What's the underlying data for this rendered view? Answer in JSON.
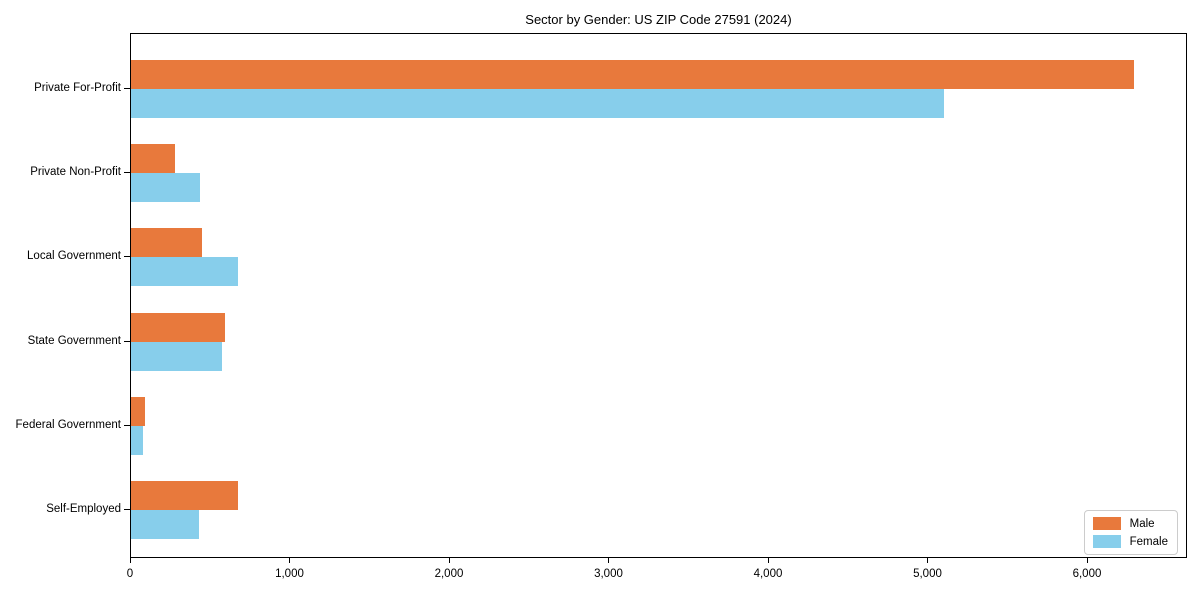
{
  "title": "Sector by Gender: US ZIP Code 27591 (2024)",
  "colors": {
    "male": "#e8793c",
    "female": "#87ceeb",
    "axis": "#000000",
    "legend_border": "#cccccc",
    "background": "#ffffff"
  },
  "legend": {
    "position": "lower right",
    "items": [
      {
        "label": "Male",
        "color_key": "male"
      },
      {
        "label": "Female",
        "color_key": "female"
      }
    ]
  },
  "chart_data": {
    "type": "bar",
    "orientation": "horizontal",
    "title": "Sector by Gender: US ZIP Code 27591 (2024)",
    "categories": [
      "Private For-Profit",
      "Private Non-Profit",
      "Local Government",
      "State Government",
      "Federal Government",
      "Self-Employed"
    ],
    "series": [
      {
        "name": "Male",
        "color": "#e8793c",
        "values": [
          6300,
          275,
          445,
          590,
          90,
          670
        ]
      },
      {
        "name": "Female",
        "color": "#87ceeb",
        "values": [
          5110,
          435,
          670,
          570,
          75,
          430
        ]
      }
    ],
    "xlabel": "",
    "ylabel": "",
    "xlim": [
      0,
      6627
    ],
    "xticks": [
      0,
      1000,
      2000,
      3000,
      4000,
      5000,
      6000
    ],
    "xtick_labels": [
      "0",
      "1,000",
      "2,000",
      "3,000",
      "4,000",
      "5,000",
      "6,000"
    ],
    "grid": false,
    "legend_position": "lower right",
    "bar_height_units": 0.35
  }
}
